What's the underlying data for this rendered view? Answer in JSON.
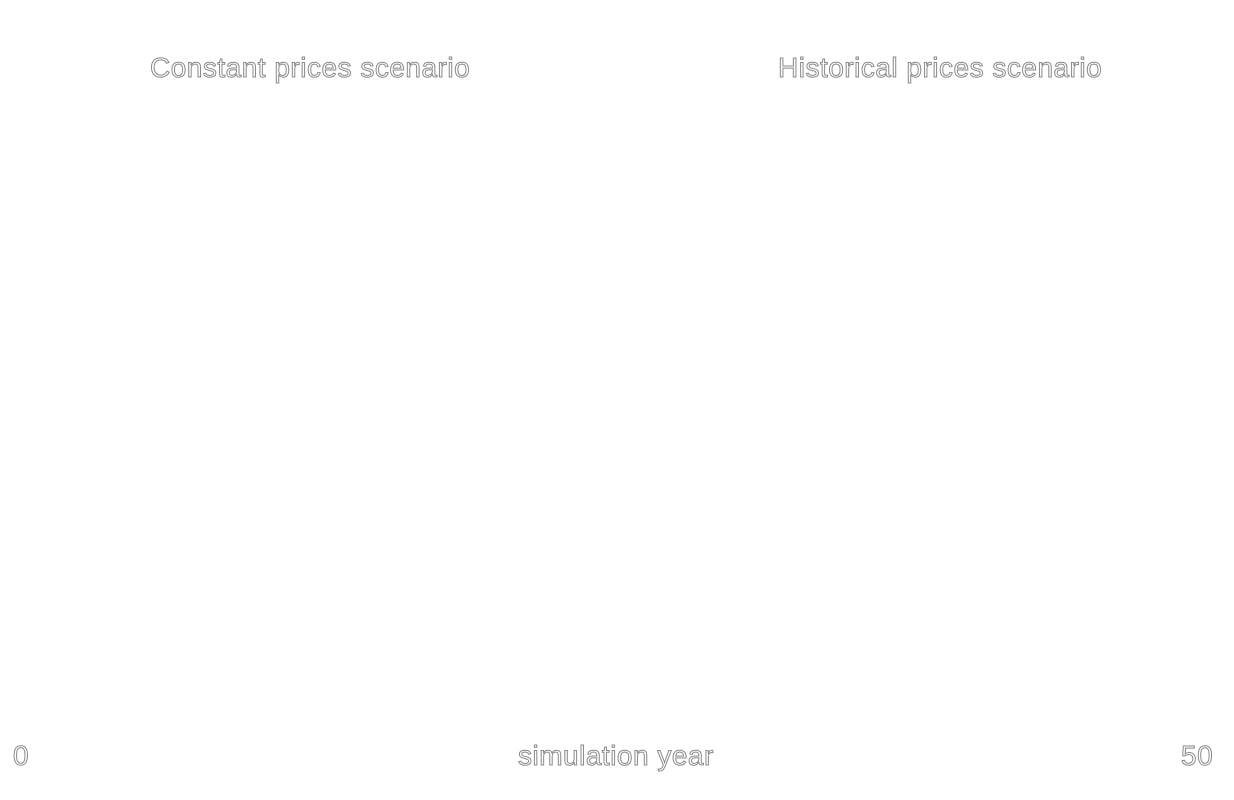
{
  "chart_data": {
    "type": "line",
    "panels": [
      {
        "title": "Constant prices scenario",
        "series": []
      },
      {
        "title": "Historical prices scenario",
        "series": []
      }
    ],
    "xlabel": "simulation year",
    "xlim": [
      0,
      50
    ],
    "tick_labels": {
      "x_min": "0",
      "x_max": "50"
    }
  }
}
